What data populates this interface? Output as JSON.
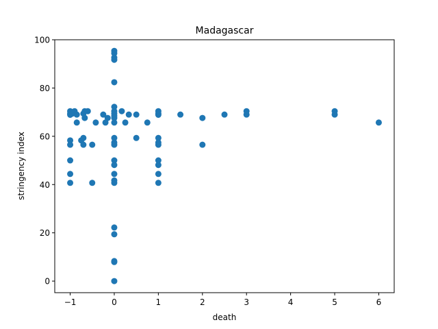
{
  "chart_data": {
    "type": "scatter",
    "title": "Madagascar",
    "xlabel": "death",
    "ylabel": "stringency index",
    "xlim": [
      -1.35,
      6.35
    ],
    "ylim": [
      -4.8,
      100
    ],
    "xticks": [
      -1,
      0,
      1,
      2,
      3,
      4,
      5,
      6
    ],
    "xtick_labels": [
      "−1",
      "0",
      "1",
      "2",
      "3",
      "4",
      "5",
      "6"
    ],
    "yticks": [
      0,
      20,
      40,
      60,
      80,
      100
    ],
    "ytick_labels": [
      "0",
      "20",
      "40",
      "60",
      "80",
      "100"
    ],
    "grid": false,
    "marker_color": "#1f77b4",
    "series": [
      {
        "points": [
          [
            -1,
            70.4
          ],
          [
            -1,
            69.4
          ],
          [
            -1,
            68.9
          ],
          [
            -1,
            58.3
          ],
          [
            -1,
            56.5
          ],
          [
            -1,
            50.0
          ],
          [
            -1,
            44.4
          ],
          [
            -1,
            40.7
          ],
          [
            -0.95,
            69.4
          ],
          [
            -0.9,
            70.4
          ],
          [
            -0.85,
            69.0
          ],
          [
            -0.85,
            65.7
          ],
          [
            -0.75,
            58.3
          ],
          [
            -0.7,
            69.4
          ],
          [
            -0.7,
            59.3
          ],
          [
            -0.7,
            56.5
          ],
          [
            -0.67,
            70.4
          ],
          [
            -0.67,
            67.6
          ],
          [
            -0.6,
            70.4
          ],
          [
            -0.5,
            56.5
          ],
          [
            -0.5,
            40.7
          ],
          [
            -0.42,
            65.7
          ],
          [
            -0.25,
            69.0
          ],
          [
            -0.2,
            65.7
          ],
          [
            -0.15,
            67.6
          ],
          [
            0,
            95.4
          ],
          [
            0,
            94.4
          ],
          [
            0,
            92.6
          ],
          [
            0,
            91.7
          ],
          [
            0,
            82.4
          ],
          [
            0,
            72.2
          ],
          [
            0,
            70.4
          ],
          [
            0,
            69.4
          ],
          [
            0,
            68.5
          ],
          [
            0,
            67.6
          ],
          [
            0,
            65.7
          ],
          [
            0,
            59.3
          ],
          [
            0,
            57.4
          ],
          [
            0,
            56.5
          ],
          [
            0,
            50.0
          ],
          [
            0,
            48.1
          ],
          [
            0,
            44.4
          ],
          [
            0,
            41.7
          ],
          [
            0,
            40.7
          ],
          [
            0,
            22.2
          ],
          [
            0,
            19.4
          ],
          [
            0,
            8.3
          ],
          [
            0,
            7.9
          ],
          [
            0,
            0.0
          ],
          [
            0.17,
            70.4
          ],
          [
            0.25,
            65.7
          ],
          [
            0.33,
            69.0
          ],
          [
            0.5,
            69.0
          ],
          [
            0.5,
            59.3
          ],
          [
            0.75,
            65.7
          ],
          [
            1,
            70.4
          ],
          [
            1,
            69.4
          ],
          [
            1,
            68.9
          ],
          [
            1,
            59.3
          ],
          [
            1,
            57.4
          ],
          [
            1,
            56.5
          ],
          [
            1,
            50.0
          ],
          [
            1,
            48.1
          ],
          [
            1,
            44.4
          ],
          [
            1,
            40.7
          ],
          [
            1.5,
            69.0
          ],
          [
            2,
            67.6
          ],
          [
            2,
            56.5
          ],
          [
            2.5,
            69.0
          ],
          [
            3,
            70.4
          ],
          [
            3,
            69.0
          ],
          [
            5,
            70.4
          ],
          [
            5,
            69.0
          ],
          [
            6,
            65.7
          ]
        ]
      }
    ]
  }
}
